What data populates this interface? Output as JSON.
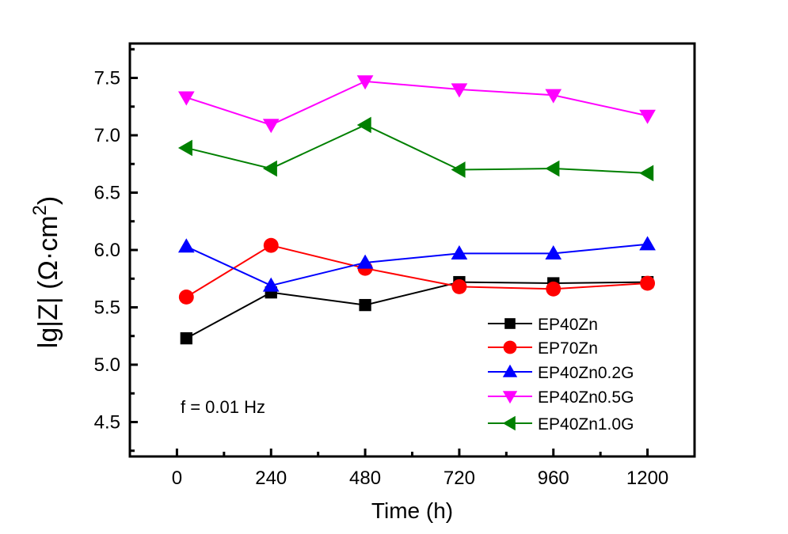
{
  "chart_data": {
    "type": "line",
    "title": "",
    "xlabel": "Time (h)",
    "ylabel": "lg|Z| (Ω·cm²)",
    "ylabel_main": "lg|Z| (Ω·cm",
    "ylabel_sup": "2",
    "ylabel_close": ")",
    "xlim": [
      -120,
      1320
    ],
    "ylim": [
      4.2,
      7.8
    ],
    "xticks": [
      0,
      240,
      480,
      720,
      960,
      1200
    ],
    "xtick_labels": [
      "0",
      "240",
      "480",
      "720",
      "960",
      "1200"
    ],
    "yticks": [
      4.5,
      5.0,
      5.5,
      6.0,
      6.5,
      7.0,
      7.5
    ],
    "ytick_labels": [
      "4.5",
      "5.0",
      "5.5",
      "6.0",
      "6.5",
      "7.0",
      "7.5"
    ],
    "grid": false,
    "legend_position": "bottom-right",
    "annotation": "f = 0.01 Hz",
    "x": [
      24,
      240,
      480,
      720,
      960,
      1200
    ],
    "series": [
      {
        "name": "EP40Zn",
        "color": "#000000",
        "marker": "square",
        "values": [
          5.23,
          5.63,
          5.52,
          5.72,
          5.71,
          5.72
        ]
      },
      {
        "name": "EP70Zn",
        "color": "#ff0000",
        "marker": "circle",
        "values": [
          5.59,
          6.04,
          5.84,
          5.68,
          5.66,
          5.71
        ]
      },
      {
        "name": "EP40Zn0.2G",
        "color": "#0000ff",
        "marker": "triangle-up",
        "values": [
          6.03,
          5.69,
          5.89,
          5.97,
          5.97,
          6.05
        ]
      },
      {
        "name": "EP40Zn0.5G",
        "color": "#ff00ff",
        "marker": "triangle-down",
        "values": [
          7.33,
          7.09,
          7.47,
          7.4,
          7.35,
          7.17
        ]
      },
      {
        "name": "EP40Zn1.0G",
        "color": "#008000",
        "marker": "triangle-left",
        "values": [
          6.89,
          6.71,
          7.09,
          6.7,
          6.71,
          6.67
        ]
      }
    ]
  }
}
